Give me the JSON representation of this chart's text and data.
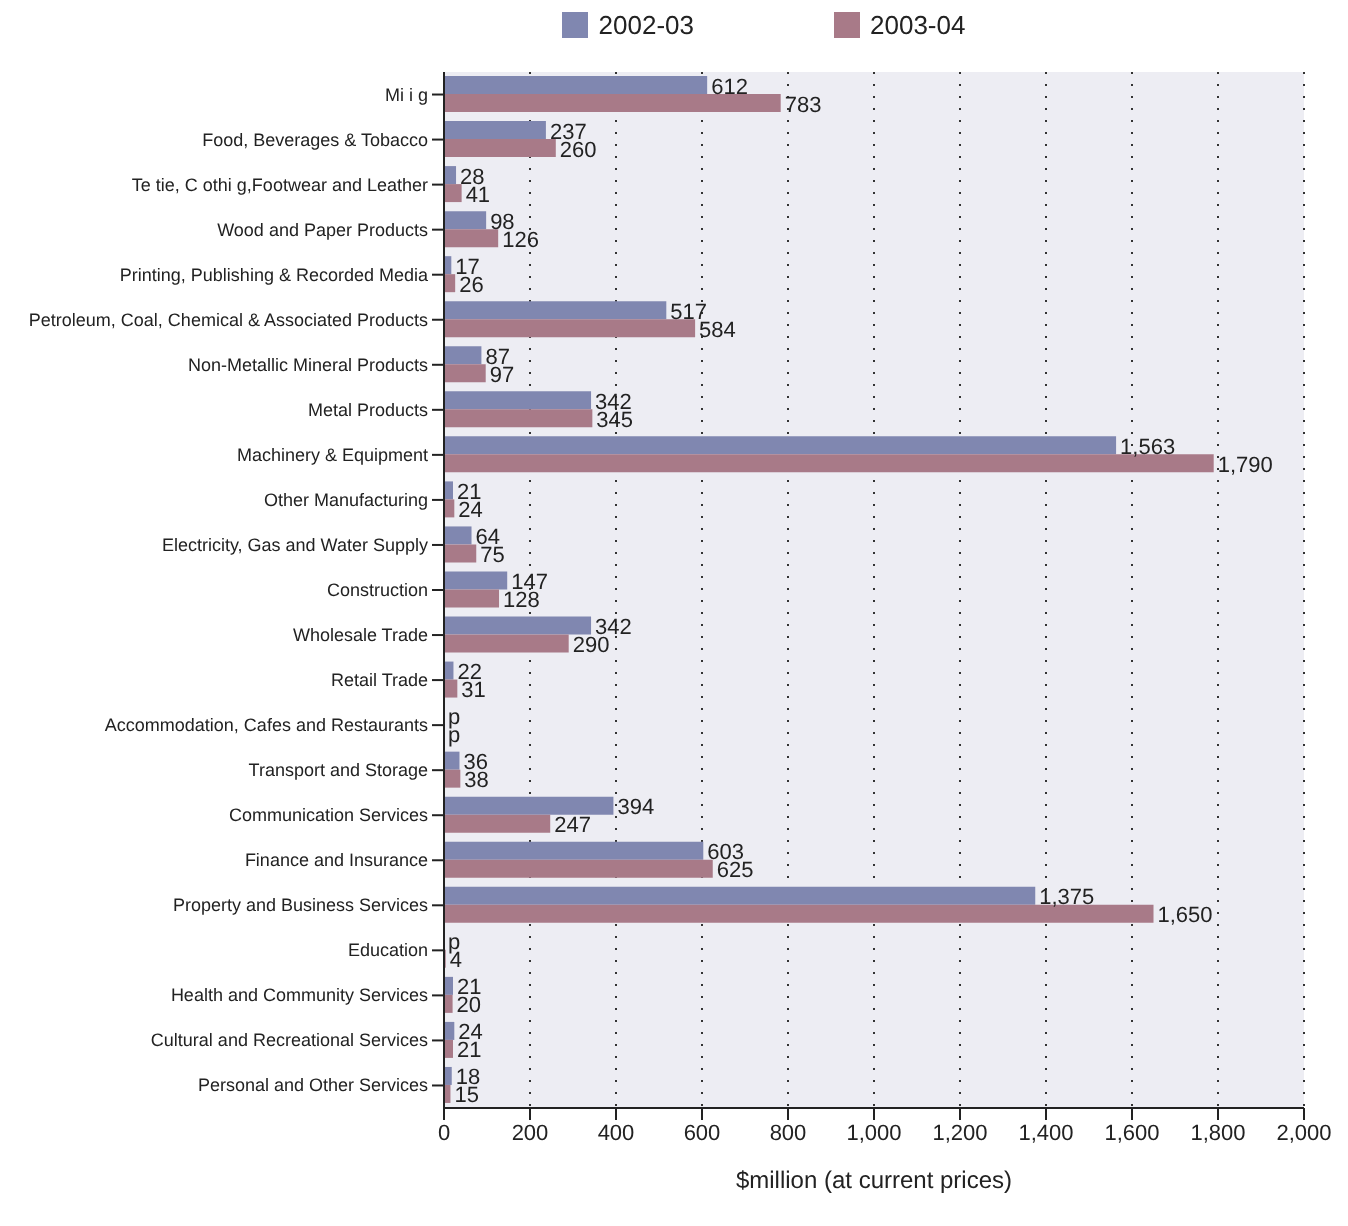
{
  "chart_data": {
    "type": "bar",
    "orientation": "horizontal",
    "xlabel": "$million (at current prices)",
    "categories": [
      "Mi i g",
      "Food, Beverages & Tobacco",
      "Te tie, C othi g,Footwear and Leather",
      "Wood and Paper Products",
      "Printing, Publishing & Recorded Media",
      "Petroleum, Coal, Chemical & Associated Products",
      "Non-Metallic Mineral Products",
      "Metal Products",
      "Machinery & Equipment",
      "Other Manufacturing",
      "Electricity, Gas and Water Supply",
      "Construction",
      "Wholesale Trade",
      "Retail Trade",
      "Accommodation, Cafes and Restaurants",
      "Transport and Storage",
      "Communication Services",
      "Finance and Insurance",
      "Property and Business Services",
      "Education",
      "Health and Community Services",
      "Cultural and Recreational Services",
      "Personal and Other Services"
    ],
    "series": [
      {
        "name": "2002-03",
        "color": "#8087b0",
        "values": [
          612,
          237,
          28,
          98,
          17,
          517,
          87,
          342,
          1563,
          21,
          64,
          147,
          342,
          22,
          null,
          36,
          394,
          603,
          1375,
          null,
          21,
          24,
          18
        ],
        "value_labels": [
          "612",
          "237",
          "28",
          "98",
          "17",
          "517",
          "87",
          "342",
          "1,563",
          "21",
          "64",
          "147",
          "342",
          "22",
          "p",
          "36",
          "394",
          "603",
          "1,375",
          "p",
          "21",
          "24",
          "18"
        ]
      },
      {
        "name": "2003-04",
        "color": "#a87a88",
        "values": [
          783,
          260,
          41,
          126,
          26,
          584,
          97,
          345,
          1790,
          24,
          75,
          128,
          290,
          31,
          null,
          38,
          247,
          625,
          1650,
          4,
          20,
          21,
          15
        ],
        "value_labels": [
          "783",
          "260",
          "41",
          "126",
          "26",
          "584",
          "97",
          "345",
          "1,790",
          "24",
          "75",
          "128",
          "290",
          "31",
          "p",
          "38",
          "247",
          "625",
          "1,650",
          "4",
          "20",
          "21",
          "15"
        ]
      }
    ],
    "xlim": [
      0,
      2000
    ],
    "xticks": [
      {
        "value": 0,
        "label": "0"
      },
      {
        "value": 200,
        "label": "200"
      },
      {
        "value": 400,
        "label": "400"
      },
      {
        "value": 600,
        "label": "600"
      },
      {
        "value": 800,
        "label": "800"
      },
      {
        "value": 1000,
        "label": "1,000"
      },
      {
        "value": 1200,
        "label": "1,200"
      },
      {
        "value": 1400,
        "label": "1,400"
      },
      {
        "value": 1600,
        "label": "1,600"
      },
      {
        "value": 1800,
        "label": "1,800"
      },
      {
        "value": 2000,
        "label": "2,000"
      }
    ],
    "grid": "x",
    "legend": "top"
  }
}
